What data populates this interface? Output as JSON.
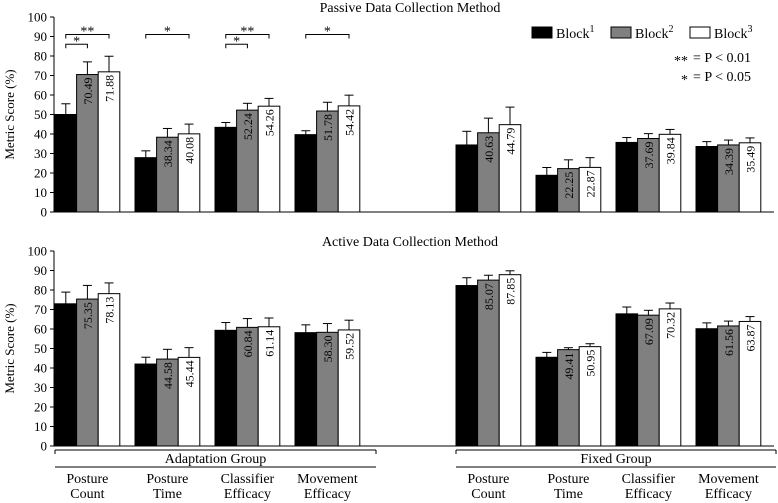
{
  "chart_data": {
    "type": "bar",
    "ylabel": "Metric Score (%)",
    "ylim": [
      0,
      100
    ],
    "yticks": [
      0,
      10,
      20,
      30,
      40,
      50,
      60,
      70,
      80,
      90,
      100
    ],
    "legend": {
      "placement": "top-right",
      "entries": [
        {
          "name": "Block",
          "sup": "1",
          "color": "#000000"
        },
        {
          "name": "Block",
          "sup": "2",
          "color": "#808080"
        },
        {
          "name": "Block",
          "sup": "3",
          "color": "#ffffff"
        }
      ]
    },
    "significance_legend": [
      {
        "marker": "**",
        "text": "= P < 0.01"
      },
      {
        "marker": "*",
        "text": "= P < 0.05"
      }
    ],
    "categories": [
      "Posture Count",
      "Posture Time",
      "Classifier Efficacy",
      "Movement Efficacy"
    ],
    "category_labels": [
      [
        "Posture",
        "Count"
      ],
      [
        "Posture",
        "Time"
      ],
      [
        "Classifier",
        "Efficacy"
      ],
      [
        "Movement",
        "Efficacy"
      ]
    ],
    "groups": [
      "Adaptation Group",
      "Fixed Group"
    ],
    "panels": [
      {
        "title": "Passive Data Collection Method",
        "series": [
          {
            "group": "Adaptation Group",
            "block1": [
              50.0,
              27.87,
              43.41,
              39.67
            ],
            "block2": [
              70.49,
              38.34,
              52.24,
              51.78
            ],
            "block3": [
              71.88,
              40.08,
              54.26,
              54.42
            ],
            "err1": [
              5.5,
              3.5,
              2.5,
              2.0
            ],
            "err2": [
              6.5,
              4.5,
              3.5,
              4.5
            ],
            "err3": [
              8.0,
              5.0,
              4.0,
              5.5
            ]
          },
          {
            "group": "Fixed Group",
            "block1": [
              34.38,
              18.82,
              35.68,
              33.59
            ],
            "block2": [
              40.63,
              22.25,
              37.69,
              34.39
            ],
            "block3": [
              44.79,
              22.87,
              39.84,
              35.49
            ],
            "err1": [
              7.0,
              4.0,
              2.5,
              2.5
            ],
            "err2": [
              7.5,
              4.5,
              2.5,
              2.5
            ],
            "err3": [
              9.0,
              5.0,
              2.5,
              2.5
            ]
          }
        ],
        "significance": [
          {
            "category": 0,
            "from": 1,
            "to": 2,
            "marker": "*",
            "level": 86
          },
          {
            "category": 0,
            "from": 1,
            "to": 3,
            "marker": "**",
            "level": 91
          },
          {
            "category": 1,
            "from": 1,
            "to": 3,
            "marker": "*",
            "level": 91
          },
          {
            "category": 2,
            "from": 1,
            "to": 2,
            "marker": "*",
            "level": 86
          },
          {
            "category": 2,
            "from": 1,
            "to": 3,
            "marker": "**",
            "level": 91
          },
          {
            "category": 3,
            "from": 1,
            "to": 3,
            "marker": "*",
            "level": 91
          }
        ]
      },
      {
        "title": "Active Data Collection Method",
        "series": [
          {
            "group": "Adaptation Group",
            "block1": [
              72.92,
              42.03,
              59.32,
              58.13
            ],
            "block2": [
              75.35,
              44.58,
              60.84,
              58.3
            ],
            "block3": [
              78.13,
              45.44,
              61.14,
              59.52
            ],
            "err1": [
              6.0,
              3.5,
              4.0,
              4.0
            ],
            "err2": [
              7.0,
              5.0,
              4.5,
              4.5
            ],
            "err3": [
              5.5,
              5.0,
              4.5,
              5.0
            ]
          },
          {
            "group": "Fixed Group",
            "block1": [
              82.29,
              45.5,
              67.77,
              60.14
            ],
            "block2": [
              85.07,
              49.41,
              67.09,
              61.56
            ],
            "block3": [
              87.85,
              50.95,
              70.32,
              63.87
            ],
            "err1": [
              4.0,
              2.5,
              3.5,
              3.0
            ],
            "err2": [
              2.5,
              1.0,
              2.5,
              2.5
            ],
            "err3": [
              2.0,
              1.5,
              3.0,
              2.5
            ]
          }
        ],
        "significance": []
      }
    ]
  }
}
